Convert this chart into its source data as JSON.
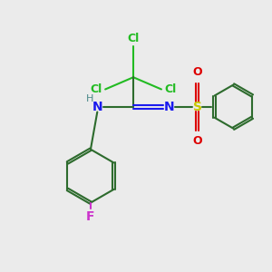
{
  "bg_color": "#ebebeb",
  "bond_color": "#2d6b2d",
  "N_color": "#1a1aee",
  "Cl_color": "#22bb22",
  "F_color": "#cc33cc",
  "S_color": "#c8c800",
  "O_color": "#dd0000",
  "H_color": "#4a8888",
  "line_width": 1.5,
  "fs": 9,
  "xlim": [
    0,
    10
  ],
  "ylim": [
    0,
    10
  ]
}
